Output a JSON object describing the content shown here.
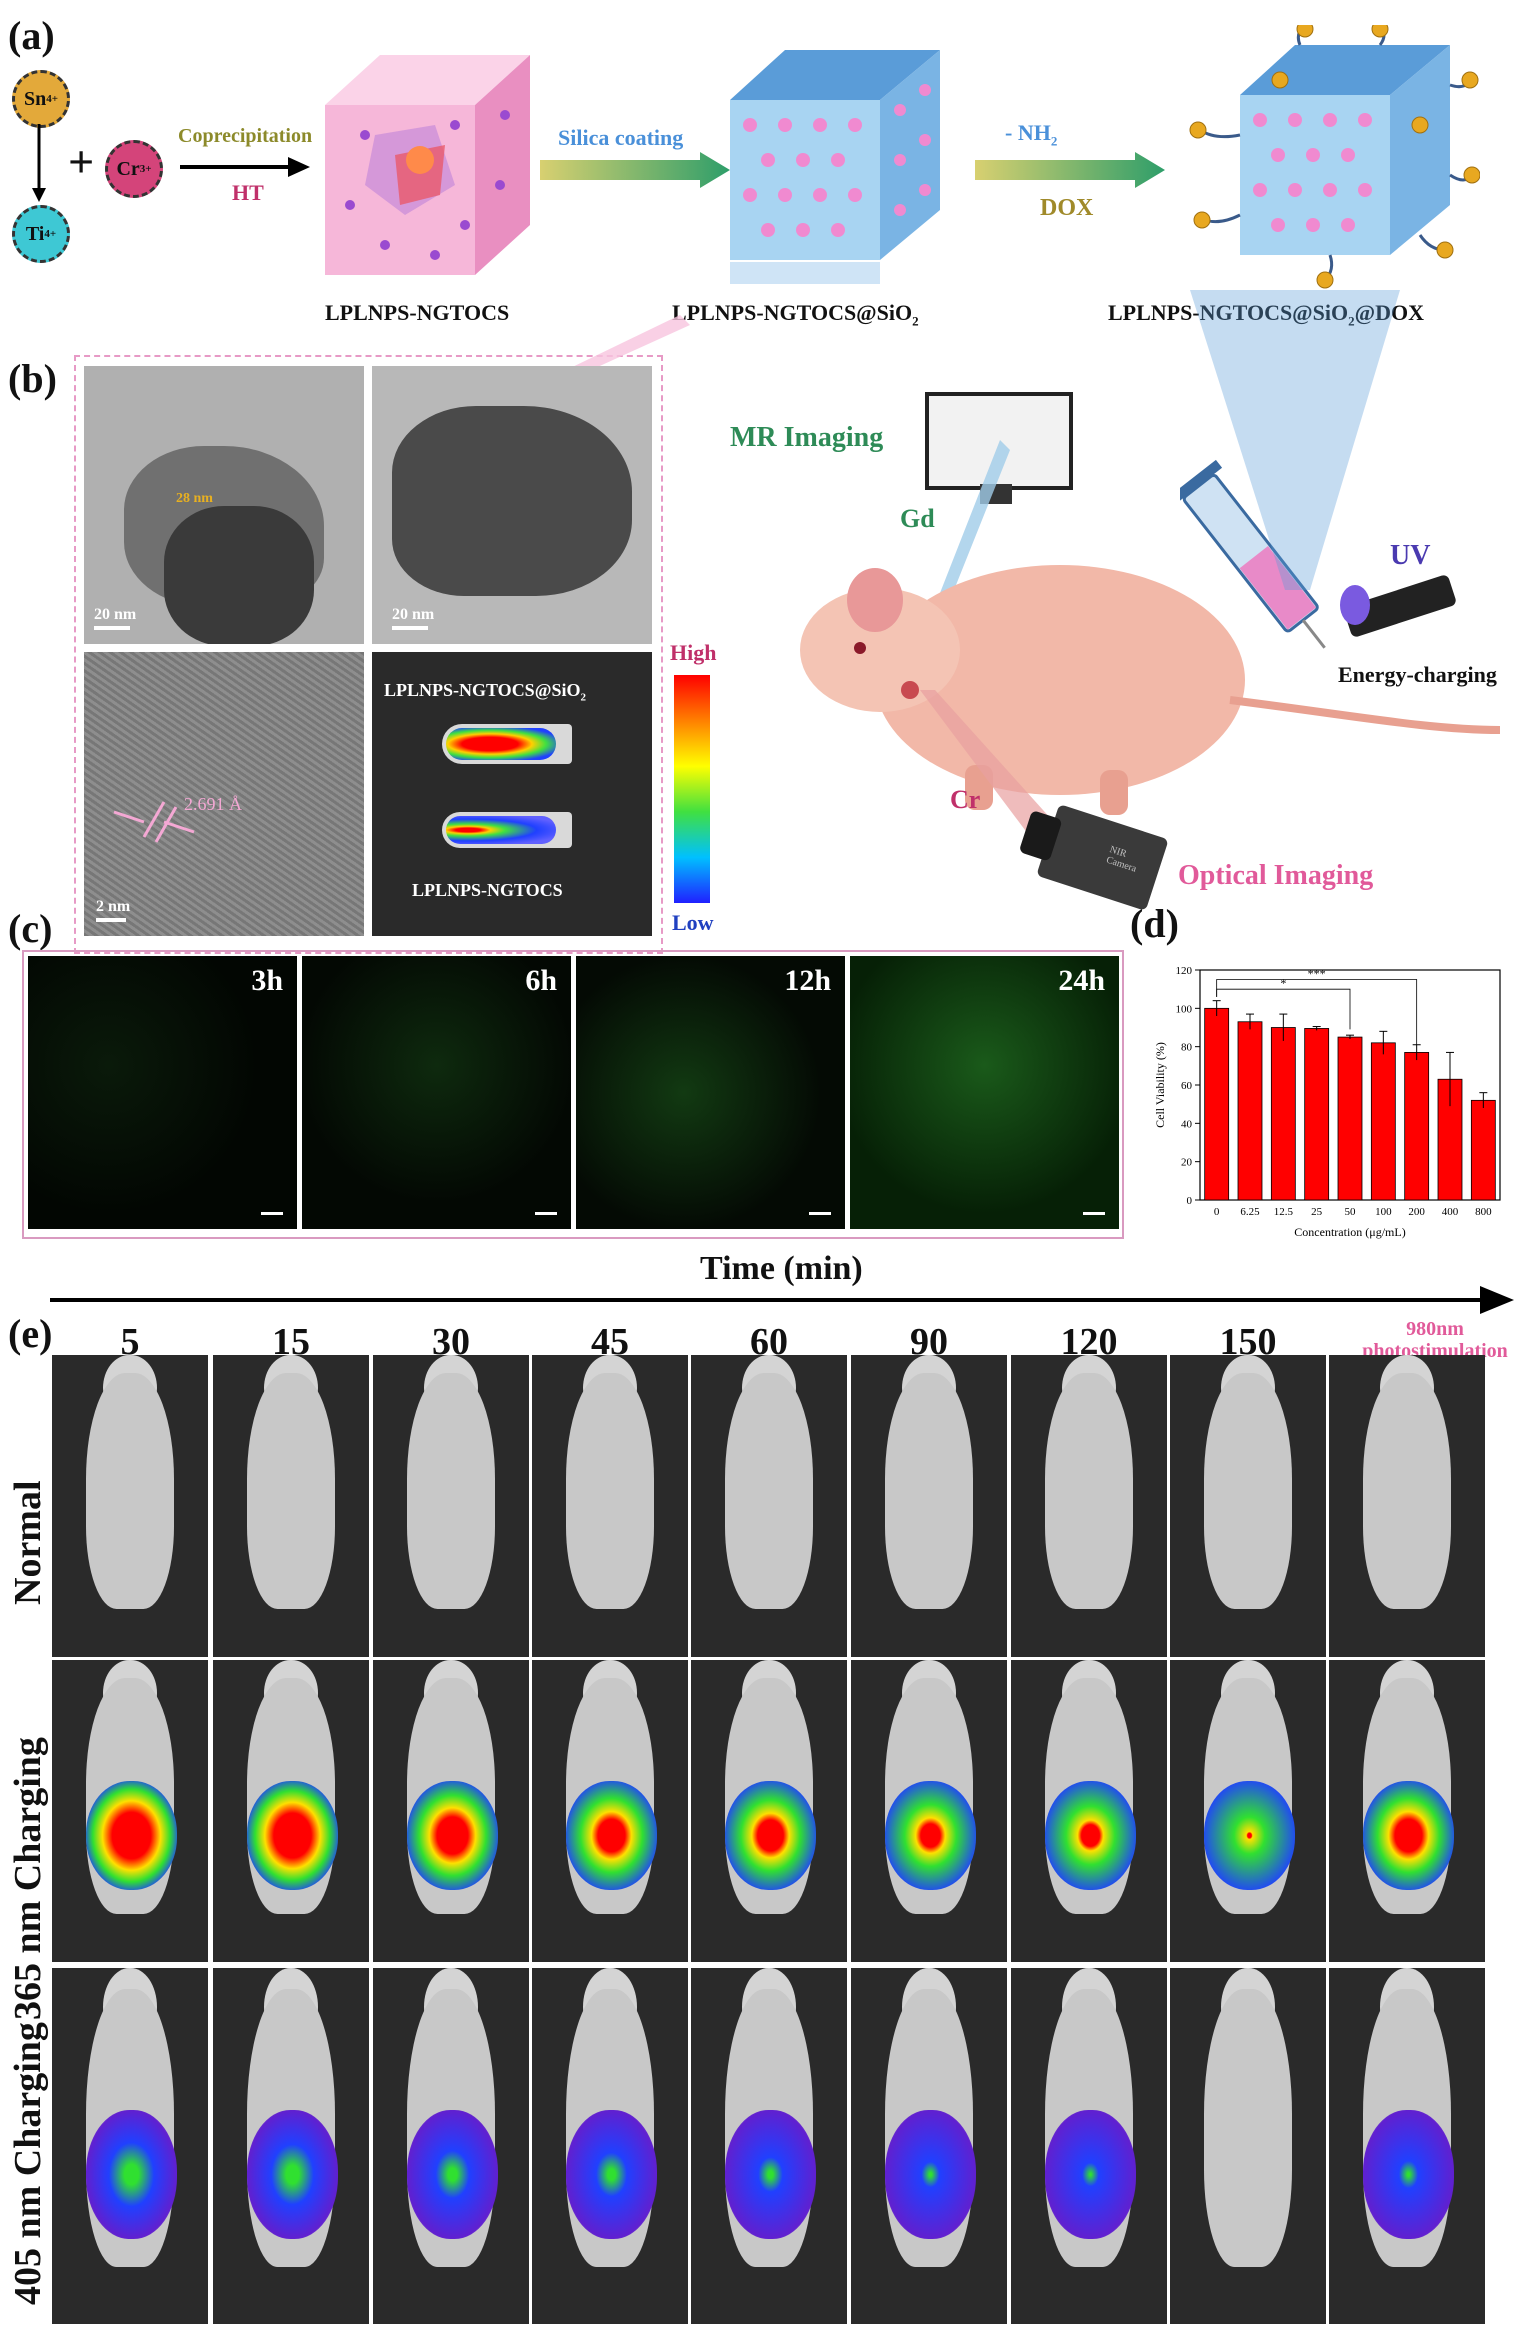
{
  "panels": {
    "a": "(a)",
    "b": "(b)",
    "c": "(c)",
    "d": "(d)",
    "e": "(e)"
  },
  "synthesis": {
    "ions": {
      "sn": "Sn",
      "sn_sup": "4+",
      "ti": "Ti",
      "ti_sup": "4+",
      "cr": "Cr",
      "cr_sup": "3+"
    },
    "plus": "+",
    "step1_top": "Coprecipitation",
    "step1_bottom": "HT",
    "step2": "Silica coating",
    "step3_top_pre": "- NH",
    "step3_top_sub": "2",
    "step3_bottom": "DOX",
    "product1": "LPLNPS-NGTOCS",
    "product2_pre": "LPLNPS-NGTOCS@SiO",
    "product2_sub": "2",
    "product3_pre": "LPLNPS-NGTOCS@SiO",
    "product3_sub": "2",
    "product3_post": "@DOX"
  },
  "tem": {
    "thickness": "28 nm",
    "scale1": "20 nm",
    "scale2": "20 nm",
    "lattice": "2.691 Å",
    "scale3": "2 nm",
    "tube1_pre": "LPLNPS-NGTOCS@SiO",
    "tube1_sub": "2",
    "tube2": "LPLNPS-NGTOCS",
    "colorbar_high": "High",
    "colorbar_low": "Low"
  },
  "imaging": {
    "mr": "MR Imaging",
    "gd": "Gd",
    "cr": "Cr",
    "uv": "UV",
    "energy": "Energy-charging",
    "optical": "Optical Imaging",
    "camera": "NIR Camera"
  },
  "cells": {
    "times": [
      "3h",
      "6h",
      "12h",
      "24h"
    ]
  },
  "colors": {
    "bar": "#ff0000",
    "pink": "#e15a9a",
    "green": "#2e8b57",
    "olive": "#9a8a2a",
    "blue": "#4a90d9"
  },
  "chart_data": {
    "type": "bar",
    "title": "",
    "categories": [
      "0",
      "6.25",
      "12.5",
      "25",
      "50",
      "100",
      "200",
      "400",
      "800"
    ],
    "values": [
      100,
      93,
      90,
      89.5,
      85,
      82,
      77,
      63,
      52
    ],
    "errors": [
      4,
      4,
      7,
      1,
      1,
      6,
      4,
      14,
      4
    ],
    "xlabel": "Concentration (μg/mL)",
    "ylabel": "Cell Viability (%)",
    "ylim": [
      0,
      120
    ],
    "yticks": [
      0,
      20,
      40,
      60,
      80,
      100,
      120
    ],
    "significance": [
      {
        "from": "0",
        "to": "50",
        "label": "*"
      },
      {
        "from": "0",
        "to": "200",
        "label": "***"
      }
    ]
  },
  "invivo": {
    "time_axis": "Time (min)",
    "times": [
      "5",
      "15",
      "30",
      "45",
      "60",
      "90",
      "120",
      "150"
    ],
    "last_col_line1": "980nm",
    "last_col_line2": "photostimulation",
    "rows": [
      "Normal",
      "365 nm Charging",
      "405 nm Charging"
    ],
    "intensity_365": [
      1.0,
      0.95,
      0.8,
      0.7,
      0.65,
      0.5,
      0.45,
      0.1,
      0.7
    ],
    "intensity_405": [
      0.7,
      0.65,
      0.45,
      0.4,
      0.25,
      0.12,
      0.08,
      0.0,
      0.15
    ]
  }
}
